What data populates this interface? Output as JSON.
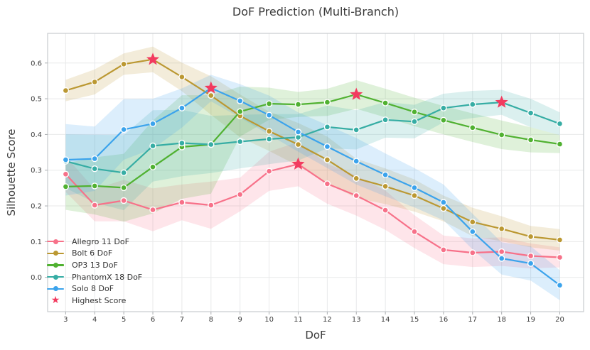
{
  "chart_data": {
    "type": "line",
    "title": "DoF Prediction (Multi-Branch)",
    "xlabel": "DoF",
    "ylabel": "Silhouette Score",
    "x": [
      3,
      4,
      5,
      6,
      7,
      8,
      9,
      10,
      11,
      12,
      13,
      14,
      15,
      16,
      17,
      18,
      19,
      20
    ],
    "xlim": [
      2.38,
      20.82
    ],
    "ylim": [
      -0.096,
      0.683
    ],
    "yticks": [
      "0.0",
      "0.1",
      "0.2",
      "0.3",
      "0.4",
      "0.5",
      "0.6"
    ],
    "grid": true,
    "legend_position": "lower-left",
    "band_opacity": 0.18,
    "series": [
      {
        "name": "Allegro 11 DoF",
        "color": "#f77189",
        "values": [
          0.289,
          0.202,
          0.215,
          0.189,
          0.21,
          0.202,
          0.232,
          0.297,
          0.317,
          0.262,
          0.229,
          0.188,
          0.128,
          0.077,
          0.069,
          0.072,
          0.06,
          0.056
        ],
        "band_half_width": [
          0.05,
          0.045,
          0.058,
          0.06,
          0.05,
          0.066,
          0.047,
          0.055,
          0.062,
          0.056,
          0.056,
          0.055,
          0.046,
          0.04,
          0.04,
          0.04,
          0.035,
          0.028
        ]
      },
      {
        "name": "Bolt 6 DoF",
        "color": "#bb9832",
        "values": [
          0.523,
          0.547,
          0.597,
          0.61,
          0.561,
          0.509,
          0.452,
          0.409,
          0.372,
          0.329,
          0.277,
          0.255,
          0.229,
          0.193,
          0.155,
          0.136,
          0.114,
          0.105
        ],
        "band_half_width": [
          0.03,
          0.035,
          0.03,
          0.036,
          0.04,
          0.054,
          0.06,
          0.055,
          0.06,
          0.065,
          0.055,
          0.05,
          0.045,
          0.036,
          0.04,
          0.035,
          0.03,
          0.03
        ]
      },
      {
        "name": "OP3 13 DoF",
        "color": "#50b131",
        "values": [
          0.254,
          0.256,
          0.251,
          0.309,
          0.365,
          0.372,
          0.464,
          0.486,
          0.484,
          0.49,
          0.512,
          0.488,
          0.463,
          0.44,
          0.419,
          0.399,
          0.385,
          0.373
        ],
        "band_half_width": [
          0.065,
          0.08,
          0.095,
          0.13,
          0.145,
          0.138,
          0.07,
          0.045,
          0.035,
          0.038,
          0.04,
          0.04,
          0.04,
          0.04,
          0.04,
          0.04,
          0.035,
          0.025
        ]
      },
      {
        "name": "PhantomX 18 DoF",
        "color": "#36ada4",
        "values": [
          0.325,
          0.304,
          0.293,
          0.368,
          0.376,
          0.372,
          0.38,
          0.387,
          0.392,
          0.421,
          0.413,
          0.441,
          0.436,
          0.474,
          0.484,
          0.49,
          0.46,
          0.43
        ],
        "band_half_width": [
          0.075,
          0.095,
          0.105,
          0.1,
          0.093,
          0.08,
          0.075,
          0.07,
          0.065,
          0.06,
          0.055,
          0.05,
          0.047,
          0.04,
          0.038,
          0.035,
          0.04,
          0.032
        ]
      },
      {
        "name": "Solo 8 DoF",
        "color": "#3ba3ec",
        "values": [
          0.329,
          0.332,
          0.414,
          0.43,
          0.474,
          0.53,
          0.494,
          0.454,
          0.407,
          0.366,
          0.325,
          0.287,
          0.251,
          0.21,
          0.128,
          0.053,
          0.039,
          -0.022
        ],
        "band_half_width": [
          0.1,
          0.09,
          0.085,
          0.07,
          0.055,
          0.037,
          0.047,
          0.055,
          0.055,
          0.06,
          0.065,
          0.06,
          0.055,
          0.05,
          0.05,
          0.045,
          0.048,
          0.042
        ]
      }
    ],
    "highlights": {
      "label": "Highest Score",
      "color": "#f23b5f",
      "points": [
        [
          6,
          0.61
        ],
        [
          8,
          0.53
        ],
        [
          11,
          0.317
        ],
        [
          13,
          0.512
        ],
        [
          18,
          0.49
        ]
      ]
    }
  }
}
